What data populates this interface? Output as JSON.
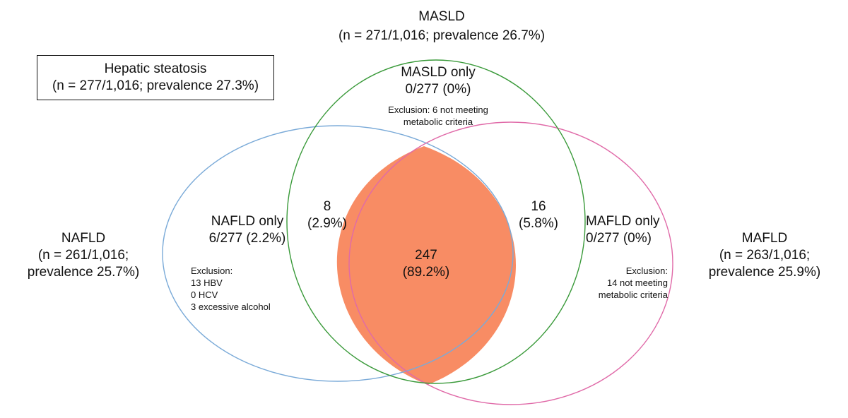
{
  "colors": {
    "nafld_circle": "#7aaad8",
    "masld_circle": "#3a9a3a",
    "mafld_circle": "#e06aa8",
    "core_fill": "#f88c64"
  },
  "hepatic_steatosis": {
    "title": "Hepatic steatosis",
    "detail": "(n = 277/1,016; prevalence 27.3%)"
  },
  "masld": {
    "title": "MASLD",
    "detail": "(n = 271/1,016; prevalence 26.7%)",
    "only_label": "MASLD only",
    "only_value": "0/277 (0%)",
    "exclusion": [
      "Exclusion: 6 not meeting",
      "metabolic criteria"
    ]
  },
  "nafld": {
    "title": "NAFLD",
    "detail_1": "(n = 261/1,016;",
    "detail_2": "prevalence 25.7%)",
    "only_label": "NAFLD only",
    "only_value": "6/277 (2.2%)",
    "exclusion": [
      "Exclusion:",
      "13 HBV",
      "0 HCV",
      "3 excessive alcohol"
    ]
  },
  "mafld": {
    "title": "MAFLD",
    "detail_1": "(n = 263/1,016;",
    "detail_2": "prevalence 25.9%)",
    "only_label": "MAFLD only",
    "only_value": "0/277 (0%)",
    "exclusion": [
      "Exclusion:",
      "14 not meeting",
      "metabolic criteria"
    ]
  },
  "overlaps": {
    "nafld_masld": {
      "count": "8",
      "pct": "(2.9%)"
    },
    "masld_mafld": {
      "count": "16",
      "pct": "(5.8%)"
    },
    "all_three": {
      "count": "247",
      "pct": "(89.2%)"
    }
  }
}
